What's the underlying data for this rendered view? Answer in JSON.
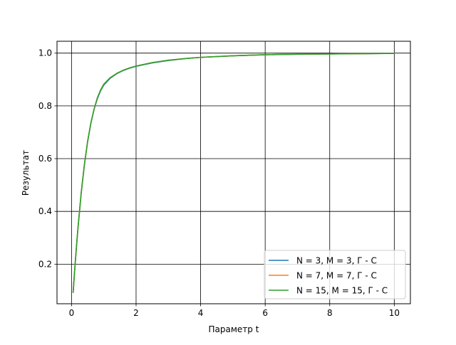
{
  "chart_data": {
    "type": "line",
    "title": "",
    "xlabel": "Параметр t",
    "ylabel": "Результат",
    "xlim": [
      -0.45,
      10.5
    ],
    "ylim": [
      0.05,
      1.045
    ],
    "xticks": [
      0,
      2,
      4,
      6,
      8,
      10
    ],
    "yticks": [
      0.2,
      0.4,
      0.6,
      0.8,
      1.0
    ],
    "xtick_labels": [
      "0",
      "2",
      "4",
      "6",
      "8",
      "10"
    ],
    "ytick_labels": [
      "0.2",
      "0.4",
      "0.6",
      "0.8",
      "1.0"
    ],
    "grid": true,
    "legend_position": "lower-right",
    "x": [
      0.05,
      0.1,
      0.15,
      0.2,
      0.3,
      0.4,
      0.5,
      0.6,
      0.7,
      0.8,
      0.9,
      1.0,
      1.2,
      1.4,
      1.6,
      1.8,
      2.0,
      2.5,
      3.0,
      3.5,
      4.0,
      5.0,
      6.0,
      7.0,
      8.0,
      9.0,
      10.0
    ],
    "series": [
      {
        "name": "N = 3, M = 3, Г - С",
        "color": "#1f77b4",
        "values": [
          0.093,
          0.181,
          0.262,
          0.337,
          0.47,
          0.578,
          0.666,
          0.735,
          0.788,
          0.827,
          0.857,
          0.879,
          0.905,
          0.922,
          0.934,
          0.943,
          0.95,
          0.963,
          0.972,
          0.979,
          0.984,
          0.99,
          0.994,
          0.996,
          0.997,
          0.998,
          0.999
        ]
      },
      {
        "name": "N = 7, M = 7, Г - С",
        "color": "#ff7f0e",
        "values": [
          0.093,
          0.181,
          0.262,
          0.337,
          0.47,
          0.578,
          0.666,
          0.735,
          0.788,
          0.83,
          0.86,
          0.882,
          0.907,
          0.923,
          0.935,
          0.944,
          0.951,
          0.964,
          0.973,
          0.979,
          0.984,
          0.99,
          0.994,
          0.996,
          0.997,
          0.998,
          0.999
        ]
      },
      {
        "name": "N = 15, M = 15, Г - С",
        "color": "#2ca02c",
        "values": [
          0.093,
          0.181,
          0.262,
          0.337,
          0.47,
          0.578,
          0.666,
          0.735,
          0.788,
          0.83,
          0.86,
          0.882,
          0.907,
          0.923,
          0.935,
          0.944,
          0.951,
          0.964,
          0.973,
          0.979,
          0.984,
          0.99,
          0.994,
          0.996,
          0.997,
          0.998,
          0.999
        ]
      }
    ]
  }
}
